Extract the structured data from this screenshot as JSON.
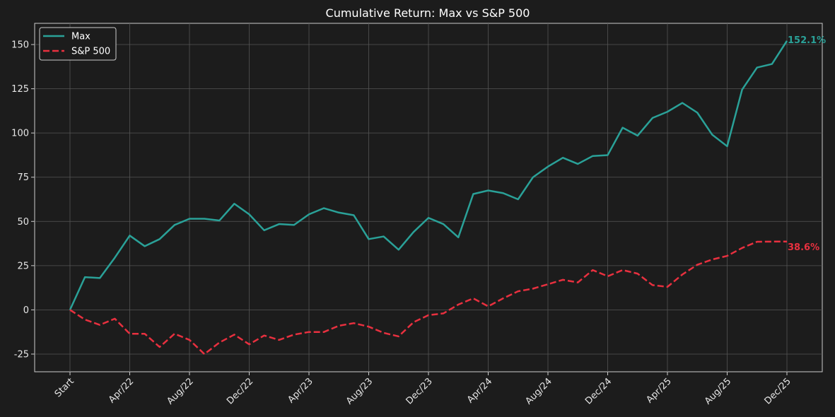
{
  "chart_data": {
    "type": "line",
    "title": "Cumulative Return: Max vs S&P 500",
    "xlabel": "",
    "ylabel": "",
    "ylim": [
      -35,
      162
    ],
    "yticks": [
      -25,
      0,
      25,
      50,
      75,
      100,
      125,
      150
    ],
    "x_tick_labels": [
      "Start",
      "Apr/22",
      "Aug/22",
      "Dec/22",
      "Apr/23",
      "Aug/23",
      "Dec/23",
      "Apr/24",
      "Aug/24",
      "Dec/24",
      "Apr/25",
      "Aug/25",
      "Dec/25"
    ],
    "x_tick_positions": [
      0,
      4,
      8,
      12,
      16,
      20,
      24,
      28,
      32,
      36,
      40,
      44,
      48
    ],
    "x_count": 49,
    "grid": true,
    "legend_position": "top-left",
    "background": "#1c1c1c",
    "series": [
      {
        "name": "Max",
        "color": "#2aa198",
        "style": "solid",
        "end_label": "152.1%",
        "values": [
          0,
          18.5,
          18,
          29.5,
          42,
          36,
          40,
          48,
          51.5,
          51.5,
          50.5,
          60,
          54,
          45,
          48.5,
          48,
          54,
          57.5,
          55,
          53.5,
          40,
          41.5,
          34,
          44,
          52,
          48.5,
          41,
          65.5,
          67.5,
          66,
          62.5,
          75,
          81,
          86,
          82.5,
          87,
          87.5,
          103,
          98.5,
          108.5,
          112,
          117,
          111.5,
          99,
          92.5,
          124.5,
          137,
          139,
          152.1
        ]
      },
      {
        "name": "S&P 500",
        "color": "#e8303f",
        "style": "dashed",
        "end_label": "38.6%",
        "values": [
          0,
          -5.5,
          -8.5,
          -5,
          -13.5,
          -13.5,
          -21,
          -13.5,
          -17,
          -25,
          -18.5,
          -14,
          -19.5,
          -14.5,
          -17,
          -14,
          -12.5,
          -12.5,
          -9,
          -7.5,
          -9.5,
          -13,
          -15,
          -7,
          -3,
          -2,
          3,
          6.5,
          2,
          6.5,
          10.5,
          12,
          14.5,
          17,
          15.5,
          22.5,
          19,
          22.5,
          20.5,
          14,
          13,
          20,
          25.5,
          28.5,
          30.5,
          35,
          38.5,
          38.6,
          38.6
        ]
      }
    ]
  }
}
